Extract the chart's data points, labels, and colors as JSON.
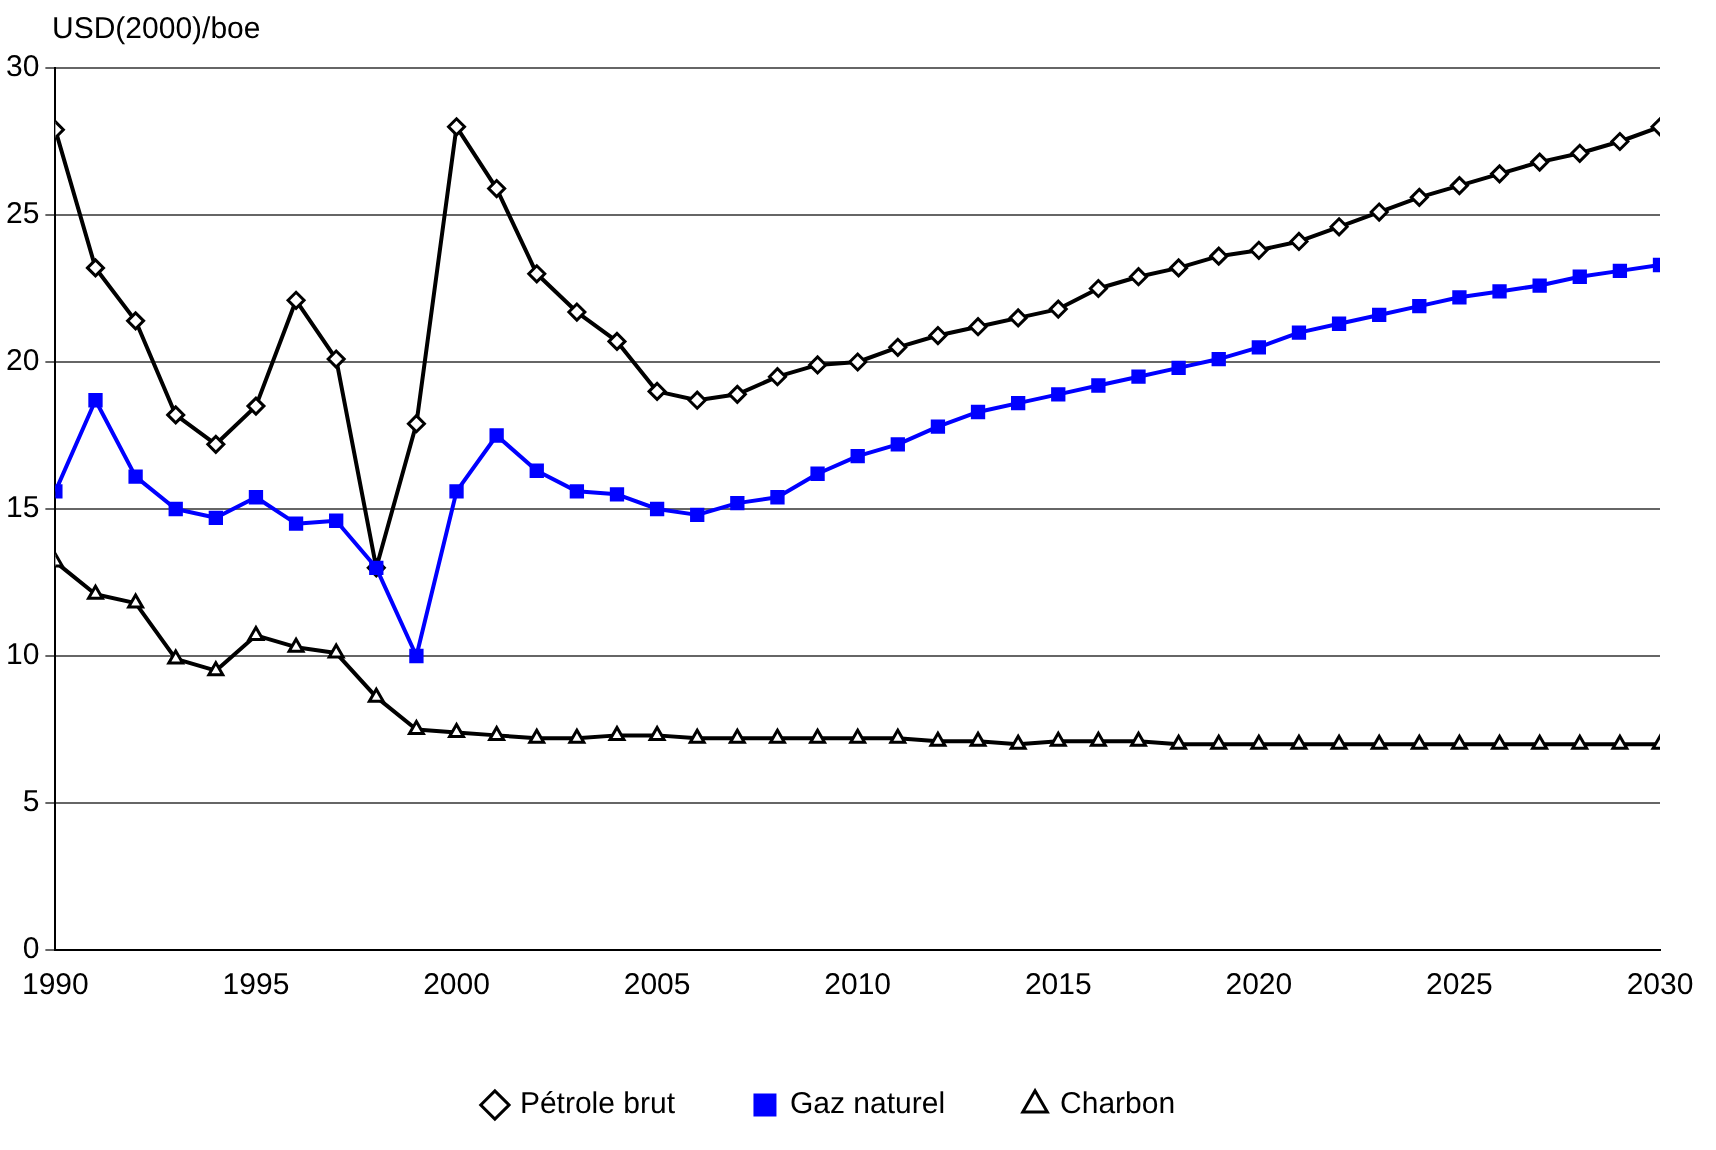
{
  "chart_data": {
    "type": "line",
    "ylabel": "USD(2000)/boe",
    "x": [
      1990,
      1991,
      1992,
      1993,
      1994,
      1995,
      1996,
      1997,
      1998,
      1999,
      2000,
      2001,
      2002,
      2003,
      2004,
      2005,
      2006,
      2007,
      2008,
      2009,
      2010,
      2011,
      2012,
      2013,
      2014,
      2015,
      2016,
      2017,
      2018,
      2019,
      2020,
      2021,
      2022,
      2023,
      2024,
      2025,
      2026,
      2027,
      2028,
      2029,
      2030
    ],
    "series": [
      {
        "name": "Pétrole brut",
        "color": "#000000",
        "marker": "diamond",
        "values": [
          27.9,
          23.2,
          21.4,
          18.2,
          17.2,
          18.5,
          22.1,
          20.1,
          13.0,
          17.9,
          28.0,
          25.9,
          23.0,
          21.7,
          20.7,
          19.0,
          18.7,
          18.9,
          19.5,
          19.9,
          20.0,
          20.5,
          20.9,
          21.2,
          21.5,
          21.8,
          22.5,
          22.9,
          23.2,
          23.6,
          23.8,
          24.1,
          24.6,
          25.1,
          25.6,
          26.0,
          26.4,
          26.8,
          27.1,
          27.5,
          28.0
        ]
      },
      {
        "name": "Gaz naturel",
        "color": "#0000ff",
        "marker": "square",
        "values": [
          15.6,
          18.7,
          16.1,
          15.0,
          14.7,
          15.4,
          14.5,
          14.6,
          13.0,
          10.0,
          15.6,
          17.5,
          16.3,
          15.6,
          15.5,
          15.0,
          14.8,
          15.2,
          15.4,
          16.2,
          16.8,
          17.2,
          17.8,
          18.3,
          18.6,
          18.9,
          19.2,
          19.5,
          19.8,
          20.1,
          20.5,
          21.0,
          21.3,
          21.6,
          21.9,
          22.2,
          22.4,
          22.6,
          22.9,
          23.1,
          23.3
        ]
      },
      {
        "name": "Charbon",
        "color": "#000000",
        "marker": "triangle",
        "values": [
          13.2,
          12.1,
          11.8,
          9.9,
          9.5,
          10.7,
          10.3,
          10.1,
          8.6,
          7.5,
          7.4,
          7.3,
          7.2,
          7.2,
          7.3,
          7.3,
          7.2,
          7.2,
          7.2,
          7.2,
          7.2,
          7.2,
          7.1,
          7.1,
          7.0,
          7.1,
          7.1,
          7.1,
          7.0,
          7.0,
          7.0,
          7.0,
          7.0,
          7.0,
          7.0,
          7.0,
          7.0,
          7.0,
          7.0,
          7.0,
          7.0
        ]
      }
    ],
    "xlim": [
      1990,
      2030
    ],
    "xticks": [
      1990,
      1995,
      2000,
      2005,
      2010,
      2015,
      2020,
      2025,
      2030
    ],
    "ylim": [
      0,
      30
    ],
    "yticks": [
      0,
      5,
      10,
      15,
      20,
      25,
      30
    ],
    "grid": "y",
    "legend": "bottom",
    "line_style": "solid"
  }
}
